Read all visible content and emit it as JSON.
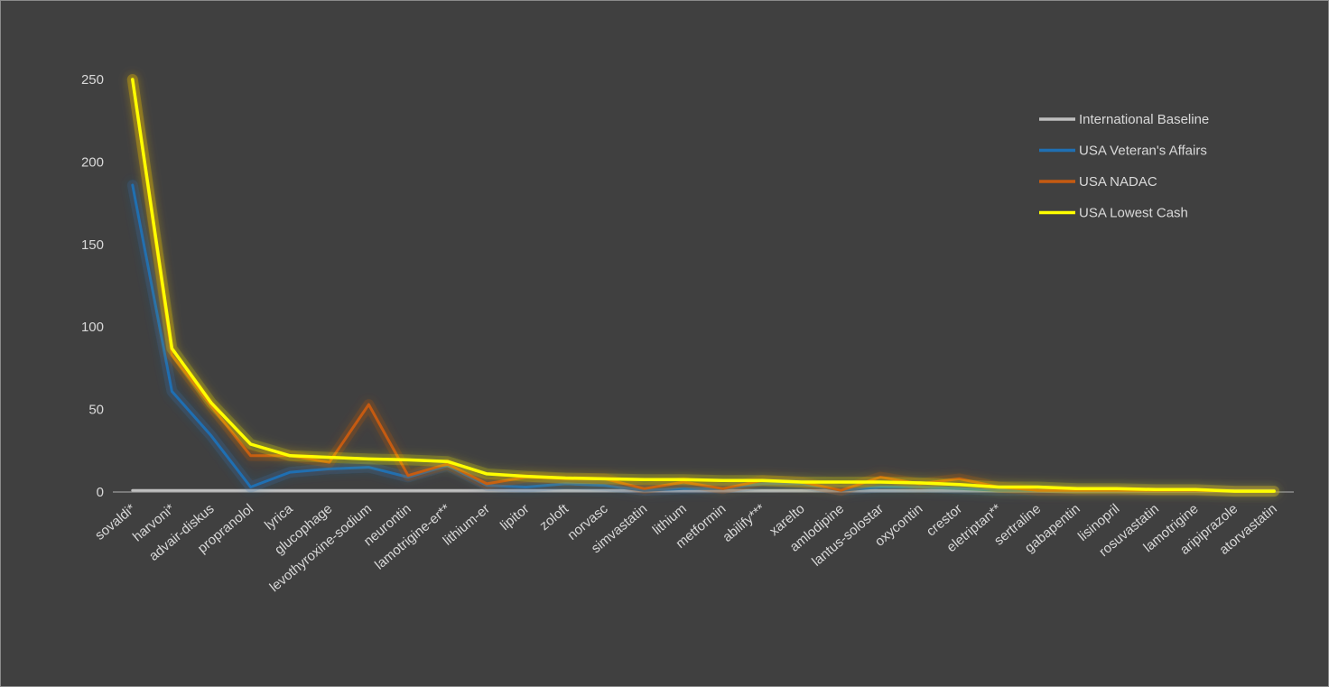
{
  "chart_data": {
    "type": "line",
    "title": "",
    "xlabel": "",
    "ylabel": "",
    "ylim": [
      0,
      250
    ],
    "yticks": [
      0,
      50,
      100,
      150,
      200,
      250
    ],
    "grid": false,
    "legend_position": "top-right",
    "background": "#404040",
    "categories": [
      "sovaldi*",
      "harvoni*",
      "advair-diskus",
      "propranolol",
      "lyrica",
      "glucophage",
      "levothyroxine-sodium",
      "neurontin",
      "lamotrigine-er**",
      "lithium-er",
      "lipitor",
      "zoloft",
      "norvasc",
      "simvastatin",
      "lithium",
      "metformin",
      "abilify***",
      "xarelto",
      "amlodipine",
      "lantus-solostar",
      "oxycontin",
      "crestor",
      "eletriptan**",
      "sertraline",
      "gabapentin",
      "lisinopril",
      "rosuvastatin",
      "lamotrigine",
      "aripiprazole",
      "atorvastatin"
    ],
    "series": [
      {
        "name": "International Baseline",
        "color": "#bfbfbf",
        "values": [
          1,
          1,
          1,
          1,
          1,
          1,
          1,
          1,
          1,
          1,
          1,
          1,
          1,
          1,
          1,
          1,
          1,
          1,
          1,
          1,
          1,
          1,
          1,
          1,
          1,
          1,
          1,
          1,
          1,
          1
        ]
      },
      {
        "name": "USA Veteran's Affairs",
        "color": "#1f6fb2",
        "values": [
          186,
          61,
          34,
          3,
          12,
          14,
          15,
          9,
          16,
          4,
          3,
          5,
          4,
          1,
          2,
          2,
          5,
          5,
          1,
          3,
          3,
          2,
          1,
          1,
          1,
          1,
          1,
          1,
          0.5,
          0.5
        ]
      },
      {
        "name": "USA NADAC",
        "color": "#c55a11",
        "values": [
          250,
          83,
          52,
          22,
          22,
          18,
          53,
          10,
          17,
          5,
          9,
          8,
          8,
          2,
          6,
          2,
          7,
          6,
          1,
          9,
          5,
          8,
          3,
          1,
          1,
          1,
          1,
          1,
          0.5,
          0.5
        ]
      },
      {
        "name": "USA Lowest Cash",
        "color": "#ffff00",
        "values": [
          250,
          87,
          54,
          29,
          22,
          21,
          20,
          19.5,
          18.5,
          11,
          9.5,
          8.5,
          8,
          7.5,
          7.5,
          7,
          7,
          6,
          6,
          6,
          5.5,
          4.5,
          3,
          3,
          2,
          2,
          1.5,
          1.5,
          0.5,
          0.5
        ]
      }
    ]
  }
}
